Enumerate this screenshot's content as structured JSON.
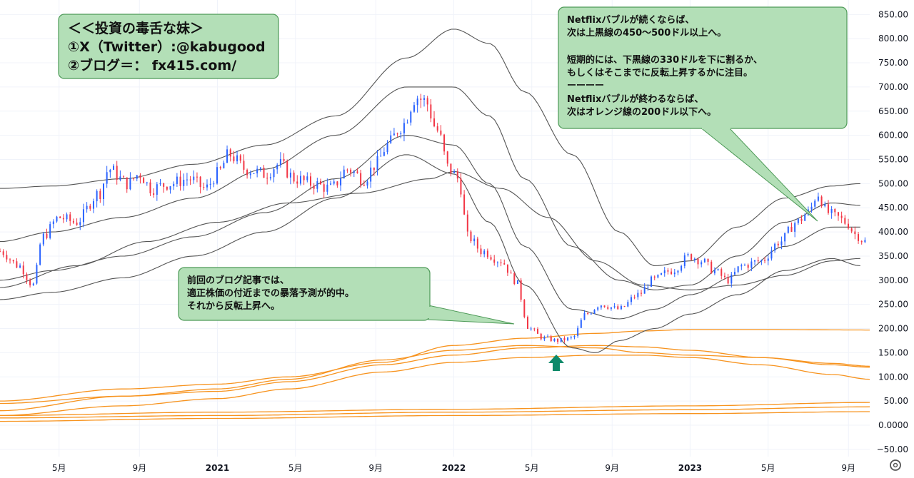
{
  "chart_data": {
    "type": "candlestick",
    "ylim": [
      -65,
      880
    ],
    "y_ticks": [
      -50,
      0,
      50,
      100,
      150,
      200,
      250,
      300,
      350,
      400,
      450,
      500,
      550,
      600,
      650,
      700,
      750,
      800,
      850
    ],
    "y_tick_labels": [
      "−50.00",
      "0.0000",
      "50.00",
      "100.00",
      "150.00",
      "200.00",
      "250.00",
      "300.00",
      "350.00",
      "400.00",
      "450.00",
      "500.00",
      "550.00",
      "600.00",
      "650.00",
      "700.00",
      "750.00",
      "800.00",
      "850.00"
    ],
    "x_ticks": [
      {
        "label": "5月",
        "t": 2020.33,
        "bold": false
      },
      {
        "label": "9月",
        "t": 2020.67,
        "bold": false
      },
      {
        "label": "2021",
        "t": 2021.0,
        "bold": true
      },
      {
        "label": "5月",
        "t": 2021.33,
        "bold": false
      },
      {
        "label": "9月",
        "t": 2021.67,
        "bold": false
      },
      {
        "label": "2022",
        "t": 2022.0,
        "bold": true
      },
      {
        "label": "5月",
        "t": 2022.33,
        "bold": false
      },
      {
        "label": "9月",
        "t": 2022.67,
        "bold": false
      },
      {
        "label": "2023",
        "t": 2023.0,
        "bold": true
      },
      {
        "label": "5月",
        "t": 2023.33,
        "bold": false
      },
      {
        "label": "9月",
        "t": 2023.67,
        "bold": false
      }
    ],
    "xlim": [
      2020.08,
      2023.76
    ],
    "price_anchors": [
      [
        2020.08,
        360
      ],
      [
        2020.16,
        330
      ],
      [
        2020.22,
        290
      ],
      [
        2020.26,
        390
      ],
      [
        2020.33,
        430
      ],
      [
        2020.4,
        420
      ],
      [
        2020.5,
        480
      ],
      [
        2020.54,
        530
      ],
      [
        2020.62,
        500
      ],
      [
        2020.67,
        520
      ],
      [
        2020.72,
        490
      ],
      [
        2020.8,
        500
      ],
      [
        2020.88,
        510
      ],
      [
        2020.95,
        490
      ],
      [
        2021.0,
        520
      ],
      [
        2021.05,
        560
      ],
      [
        2021.12,
        530
      ],
      [
        2021.2,
        520
      ],
      [
        2021.26,
        540
      ],
      [
        2021.33,
        510
      ],
      [
        2021.4,
        500
      ],
      [
        2021.48,
        490
      ],
      [
        2021.55,
        530
      ],
      [
        2021.62,
        510
      ],
      [
        2021.67,
        540
      ],
      [
        2021.72,
        580
      ],
      [
        2021.78,
        620
      ],
      [
        2021.84,
        680
      ],
      [
        2021.88,
        670
      ],
      [
        2021.93,
        610
      ],
      [
        2021.98,
        530
      ],
      [
        2022.02,
        510
      ],
      [
        2022.06,
        390
      ],
      [
        2022.12,
        360
      ],
      [
        2022.2,
        340
      ],
      [
        2022.26,
        300
      ],
      [
        2022.32,
        200
      ],
      [
        2022.38,
        180
      ],
      [
        2022.44,
        175
      ],
      [
        2022.5,
        180
      ],
      [
        2022.56,
        230
      ],
      [
        2022.62,
        250
      ],
      [
        2022.7,
        240
      ],
      [
        2022.78,
        270
      ],
      [
        2022.84,
        300
      ],
      [
        2022.92,
        320
      ],
      [
        2023.0,
        350
      ],
      [
        2023.05,
        340
      ],
      [
        2023.1,
        320
      ],
      [
        2023.16,
        300
      ],
      [
        2023.22,
        330
      ],
      [
        2023.3,
        340
      ],
      [
        2023.38,
        380
      ],
      [
        2023.45,
        420
      ],
      [
        2023.5,
        440
      ],
      [
        2023.54,
        480
      ],
      [
        2023.58,
        440
      ],
      [
        2023.62,
        430
      ],
      [
        2023.66,
        420
      ],
      [
        2023.7,
        395
      ],
      [
        2023.74,
        380
      ]
    ],
    "black_lines": [
      {
        "pts": [
          [
            2020.08,
            490
          ],
          [
            2020.3,
            495
          ],
          [
            2020.6,
            510
          ],
          [
            2020.9,
            540
          ],
          [
            2021.2,
            580
          ],
          [
            2021.5,
            640
          ],
          [
            2021.8,
            760
          ],
          [
            2022.0,
            820
          ],
          [
            2022.15,
            790
          ],
          [
            2022.3,
            690
          ],
          [
            2022.5,
            560
          ],
          [
            2022.7,
            400
          ],
          [
            2022.85,
            330
          ],
          [
            2023.0,
            340
          ],
          [
            2023.2,
            410
          ],
          [
            2023.4,
            470
          ],
          [
            2023.6,
            495
          ],
          [
            2023.72,
            500
          ]
        ]
      },
      {
        "pts": [
          [
            2020.08,
            380
          ],
          [
            2020.3,
            400
          ],
          [
            2020.6,
            430
          ],
          [
            2020.9,
            470
          ],
          [
            2021.2,
            530
          ],
          [
            2021.5,
            600
          ],
          [
            2021.8,
            700
          ],
          [
            2022.0,
            700
          ],
          [
            2022.15,
            640
          ],
          [
            2022.3,
            510
          ],
          [
            2022.5,
            370
          ],
          [
            2022.7,
            300
          ],
          [
            2022.85,
            280
          ],
          [
            2023.0,
            290
          ],
          [
            2023.2,
            350
          ],
          [
            2023.4,
            420
          ],
          [
            2023.6,
            460
          ],
          [
            2023.72,
            455
          ]
        ]
      },
      {
        "pts": [
          [
            2020.08,
            300
          ],
          [
            2020.3,
            320
          ],
          [
            2020.6,
            350
          ],
          [
            2020.9,
            390
          ],
          [
            2021.2,
            440
          ],
          [
            2021.5,
            510
          ],
          [
            2021.8,
            600
          ],
          [
            2022.0,
            580
          ],
          [
            2022.15,
            500
          ],
          [
            2022.3,
            370
          ],
          [
            2022.5,
            240
          ],
          [
            2022.7,
            220
          ],
          [
            2022.85,
            240
          ],
          [
            2023.0,
            270
          ],
          [
            2023.2,
            310
          ],
          [
            2023.4,
            370
          ],
          [
            2023.6,
            410
          ],
          [
            2023.72,
            410
          ]
        ]
      },
      {
        "pts": [
          [
            2020.08,
            260
          ],
          [
            2020.3,
            275
          ],
          [
            2020.6,
            305
          ],
          [
            2020.9,
            350
          ],
          [
            2021.2,
            400
          ],
          [
            2021.5,
            470
          ],
          [
            2021.8,
            560
          ],
          [
            2022.0,
            520
          ],
          [
            2022.15,
            420
          ],
          [
            2022.3,
            290
          ],
          [
            2022.5,
            160
          ],
          [
            2022.6,
            150
          ],
          [
            2022.7,
            175
          ],
          [
            2022.85,
            200
          ],
          [
            2023.0,
            230
          ],
          [
            2023.2,
            270
          ],
          [
            2023.4,
            320
          ],
          [
            2023.6,
            345
          ],
          [
            2023.72,
            330
          ]
        ]
      },
      {
        "pts": [
          [
            2020.08,
            285
          ],
          [
            2020.4,
            330
          ],
          [
            2020.7,
            380
          ],
          [
            2021.0,
            420
          ],
          [
            2021.3,
            460
          ],
          [
            2021.6,
            480
          ],
          [
            2021.9,
            510
          ],
          [
            2022.0,
            525
          ],
          [
            2022.2,
            490
          ],
          [
            2022.4,
            430
          ],
          [
            2022.6,
            340
          ],
          [
            2022.8,
            290
          ],
          [
            2023.0,
            280
          ],
          [
            2023.2,
            290
          ],
          [
            2023.4,
            310
          ],
          [
            2023.6,
            340
          ],
          [
            2023.72,
            345
          ]
        ]
      }
    ],
    "orange_lines": [
      {
        "pts": [
          [
            2020.08,
            50
          ],
          [
            2020.6,
            75
          ],
          [
            2021.0,
            85
          ],
          [
            2021.3,
            100
          ],
          [
            2021.7,
            130
          ],
          [
            2022.0,
            165
          ],
          [
            2022.3,
            180
          ],
          [
            2022.6,
            190
          ],
          [
            2022.8,
            195
          ],
          [
            2023.0,
            198
          ],
          [
            2023.3,
            198
          ],
          [
            2023.76,
            197
          ]
        ]
      },
      {
        "pts": [
          [
            2020.08,
            30
          ],
          [
            2020.6,
            60
          ],
          [
            2021.0,
            70
          ],
          [
            2021.3,
            90
          ],
          [
            2021.7,
            125
          ],
          [
            2022.0,
            145
          ],
          [
            2022.3,
            160
          ],
          [
            2022.6,
            165
          ],
          [
            2022.8,
            162
          ],
          [
            2023.0,
            155
          ],
          [
            2023.3,
            140
          ],
          [
            2023.6,
            125
          ],
          [
            2023.76,
            120
          ]
        ]
      },
      {
        "pts": [
          [
            2020.08,
            20
          ],
          [
            2020.6,
            40
          ],
          [
            2021.0,
            55
          ],
          [
            2021.3,
            75
          ],
          [
            2021.7,
            110
          ],
          [
            2022.0,
            130
          ],
          [
            2022.3,
            140
          ],
          [
            2022.6,
            145
          ],
          [
            2022.8,
            145
          ],
          [
            2023.0,
            140
          ],
          [
            2023.3,
            125
          ],
          [
            2023.6,
            105
          ],
          [
            2023.76,
            95
          ]
        ]
      },
      {
        "pts": [
          [
            2020.08,
            45
          ],
          [
            2020.6,
            60
          ],
          [
            2021.0,
            75
          ],
          [
            2021.3,
            95
          ],
          [
            2021.7,
            135
          ],
          [
            2022.0,
            155
          ],
          [
            2022.3,
            165
          ],
          [
            2022.6,
            160
          ],
          [
            2022.8,
            150
          ],
          [
            2023.0,
            145
          ],
          [
            2023.3,
            140
          ],
          [
            2023.6,
            128
          ],
          [
            2023.76,
            122
          ]
        ]
      },
      {
        "pts": [
          [
            2020.08,
            20
          ],
          [
            2021.0,
            27
          ],
          [
            2022.0,
            33
          ],
          [
            2023.0,
            40
          ],
          [
            2023.76,
            47
          ]
        ]
      },
      {
        "pts": [
          [
            2020.08,
            15
          ],
          [
            2021.0,
            20
          ],
          [
            2022.0,
            27
          ],
          [
            2023.0,
            32
          ],
          [
            2023.76,
            38
          ]
        ]
      },
      {
        "pts": [
          [
            2020.08,
            8
          ],
          [
            2021.0,
            14
          ],
          [
            2022.0,
            20
          ],
          [
            2023.0,
            24
          ],
          [
            2023.76,
            28
          ]
        ]
      }
    ],
    "annotations": [
      {
        "lines": [
          "Netflixバブルが続くならば、",
          "次は上黒線の450〜500ドル以上へ。",
          "",
          "短期的には、下黒線の330ドルを下に割るか、",
          "もしくはそこまでに反転上昇するかに注目。",
          "ーーーー",
          "Netflixバブルが終わるならば、",
          "次はオレンジ線の200ドル以下へ。"
        ]
      },
      {
        "lines": [
          "前回のブログ記事では、",
          "適正株価の付近までの暴落予測が的中。",
          "それから反転上昇へ。"
        ]
      }
    ]
  },
  "title_box": {
    "line1": "＜＜投資の毒舌な妹＞",
    "line2": "①X（Twitter）:@kabugood",
    "line3": "②ブログ＝：  fx415.com/"
  },
  "colors": {
    "up": "#2962ff",
    "down": "#f23645",
    "band": "#555555",
    "orange": "#f7931e",
    "note_fill": "#b3dfb7",
    "note_stroke": "#4e9a58",
    "arrow": "#0d8a6a"
  },
  "icons": {
    "settings": "gear-icon"
  }
}
